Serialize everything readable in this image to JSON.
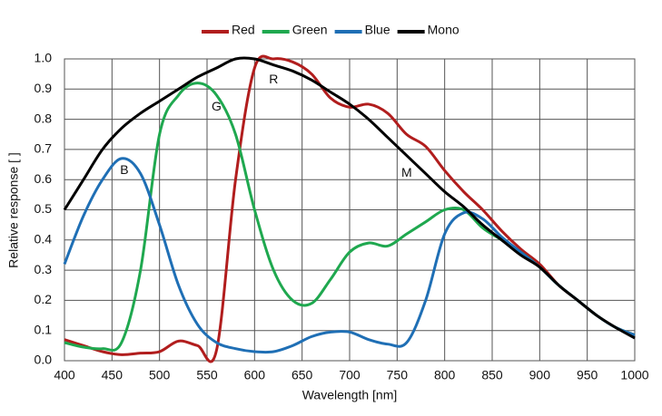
{
  "chart_data": {
    "type": "line",
    "xlabel": "Wavelength [nm]",
    "ylabel": "Relative response [ ]",
    "x": [
      400,
      420,
      440,
      460,
      480,
      500,
      520,
      540,
      560,
      580,
      600,
      620,
      640,
      660,
      680,
      700,
      720,
      740,
      760,
      780,
      800,
      820,
      840,
      860,
      880,
      900,
      920,
      940,
      960,
      980,
      1000
    ],
    "series": [
      {
        "name": "Red",
        "color": "#b11d1d",
        "values": [
          0.07,
          0.05,
          0.03,
          0.02,
          0.025,
          0.03,
          0.065,
          0.05,
          0.035,
          0.6,
          0.97,
          1.0,
          0.99,
          0.95,
          0.87,
          0.84,
          0.85,
          0.82,
          0.75,
          0.71,
          0.63,
          0.56,
          0.5,
          0.43,
          0.37,
          0.32,
          0.25,
          0.2,
          0.15,
          0.11,
          0.085
        ]
      },
      {
        "name": "Green",
        "color": "#1fa84f",
        "values": [
          0.06,
          0.045,
          0.04,
          0.06,
          0.3,
          0.75,
          0.88,
          0.92,
          0.88,
          0.75,
          0.5,
          0.3,
          0.2,
          0.19,
          0.27,
          0.36,
          0.39,
          0.38,
          0.42,
          0.46,
          0.5,
          0.5,
          0.44,
          0.4,
          0.36,
          0.31,
          0.25,
          0.2,
          0.15,
          0.11,
          0.085
        ]
      },
      {
        "name": "Blue",
        "color": "#1f6fb5",
        "values": [
          0.32,
          0.48,
          0.6,
          0.67,
          0.62,
          0.45,
          0.25,
          0.12,
          0.06,
          0.04,
          0.03,
          0.03,
          0.05,
          0.08,
          0.095,
          0.095,
          0.07,
          0.055,
          0.06,
          0.2,
          0.42,
          0.49,
          0.47,
          0.41,
          0.36,
          0.31,
          0.25,
          0.2,
          0.15,
          0.11,
          0.085
        ]
      },
      {
        "name": "Mono",
        "color": "#000000",
        "values": [
          0.5,
          0.6,
          0.7,
          0.77,
          0.82,
          0.86,
          0.9,
          0.94,
          0.97,
          1.0,
          1.0,
          0.98,
          0.96,
          0.93,
          0.89,
          0.85,
          0.8,
          0.74,
          0.68,
          0.62,
          0.56,
          0.51,
          0.45,
          0.4,
          0.35,
          0.31,
          0.25,
          0.2,
          0.15,
          0.11,
          0.075
        ]
      }
    ],
    "annotations": [
      {
        "text": "R",
        "x": 620,
        "y": 0.93
      },
      {
        "text": "G",
        "x": 560,
        "y": 0.84
      },
      {
        "text": "B",
        "x": 463,
        "y": 0.63
      },
      {
        "text": "M",
        "x": 760,
        "y": 0.62
      }
    ],
    "xlim": [
      400,
      1000
    ],
    "xticks": [
      400,
      450,
      500,
      550,
      600,
      650,
      700,
      750,
      800,
      850,
      900,
      950,
      1000
    ],
    "ylim": [
      0,
      1
    ],
    "yticks": [
      {
        "value": 0,
        "label": "0.0"
      },
      0.1,
      0.2,
      0.3,
      0.4,
      0.5,
      0.6,
      0.7,
      0.8,
      0.9,
      {
        "value": 1,
        "label": "1.0"
      }
    ],
    "grid": true,
    "legend": "top"
  }
}
